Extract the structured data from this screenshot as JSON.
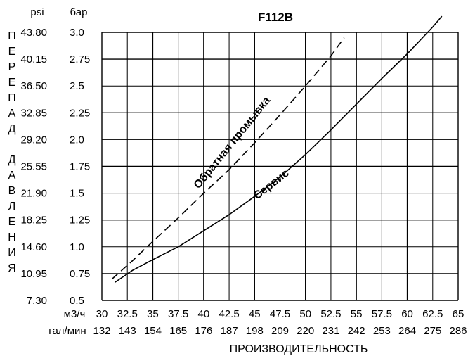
{
  "chart_data": {
    "type": "line",
    "title": "F112B",
    "y_units": {
      "psi": "psi",
      "bar": "бар"
    },
    "y_label": "ПЕРЕПАД ДАВЛЕНИЯ",
    "x_units": {
      "m3h": "м3/ч",
      "gpm": "гал/мин"
    },
    "x_label": "ПРОИЗВОДИТЕЛЬНОСТЬ",
    "xlim": [
      30,
      65
    ],
    "ylim": [
      0.5,
      3.0
    ],
    "x_ticks_m3h": [
      "30",
      "32.5",
      "35",
      "37.5",
      "40",
      "42.5",
      "45",
      "47.5",
      "50",
      "52.5",
      "55",
      "57.5",
      "60",
      "62.5",
      "65"
    ],
    "x_ticks_gpm": [
      "132",
      "143",
      "154",
      "165",
      "176",
      "187",
      "198",
      "209",
      "220",
      "231",
      "242",
      "253",
      "264",
      "275",
      "286"
    ],
    "y_ticks_bar": [
      "0.5",
      "0.75",
      "1.0",
      "1.25",
      "1.5",
      "1.75",
      "2.0",
      "2.25",
      "2.5",
      "2.75",
      "3.0"
    ],
    "y_ticks_psi": [
      "7.30",
      "10.95",
      "14.60",
      "18.25",
      "21.90",
      "25.55",
      "29.20",
      "32.85",
      "36.50",
      "40.15",
      "43.80"
    ],
    "grid": true,
    "series": [
      {
        "name": "Сервис",
        "style": "solid",
        "x": [
          31.3,
          33,
          35,
          37.5,
          40,
          42.5,
          45,
          47.5,
          50,
          52.5,
          55,
          57.5,
          60,
          62.5,
          63.4
        ],
        "y": [
          0.67,
          0.78,
          0.88,
          1.0,
          1.15,
          1.3,
          1.47,
          1.65,
          1.86,
          2.09,
          2.33,
          2.57,
          2.8,
          3.05,
          3.15
        ]
      },
      {
        "name": "Обратная промывка",
        "style": "dashed",
        "x": [
          31.0,
          33,
          35,
          37.5,
          40,
          42.5,
          45,
          47.5,
          50,
          52.5,
          53.8
        ],
        "y": [
          0.7,
          0.87,
          1.05,
          1.27,
          1.5,
          1.72,
          1.97,
          2.23,
          2.5,
          2.78,
          2.95
        ]
      }
    ]
  }
}
